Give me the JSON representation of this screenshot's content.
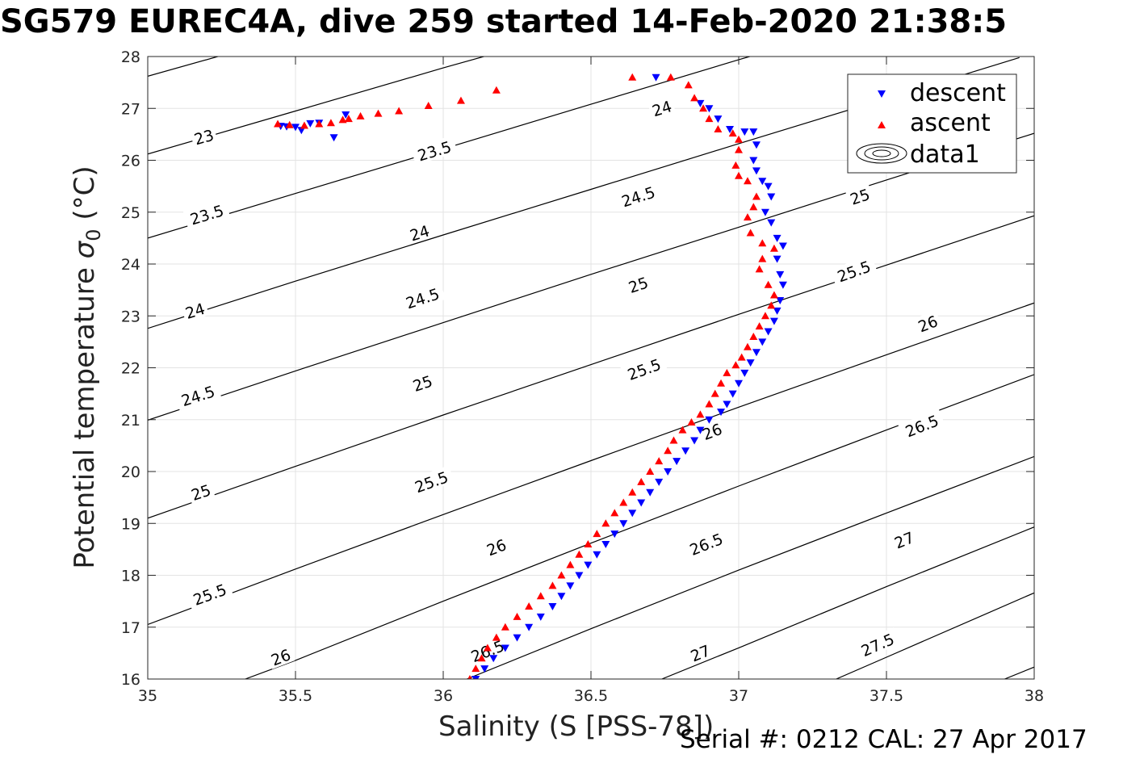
{
  "title": "SG579 EUREC4A, dive 259 started 14-Feb-2020 21:38:5",
  "footer": "Serial #: 0212  CAL: 27 Apr 2017",
  "chart_data": {
    "type": "scatter",
    "xlabel": "Salinity (S [PSS-78])",
    "ylabel_main": "Potential temperature ",
    "ylabel_symbol": "σ",
    "ylabel_sub": "0",
    "ylabel_unit": " (°C)",
    "xlim": [
      35,
      38
    ],
    "ylim": [
      16,
      28
    ],
    "xticks": [
      35,
      35.5,
      36,
      36.5,
      37,
      37.5,
      38
    ],
    "xtick_labels": [
      "35",
      "35.5",
      "36",
      "36.5",
      "37",
      "37.5",
      "38"
    ],
    "yticks": [
      16,
      17,
      18,
      19,
      20,
      21,
      22,
      23,
      24,
      25,
      26,
      27,
      28
    ],
    "ytick_labels": [
      "16",
      "17",
      "18",
      "19",
      "20",
      "21",
      "22",
      "23",
      "24",
      "25",
      "26",
      "27",
      "28"
    ],
    "grid": true,
    "legend_position": "top-right",
    "legend": [
      "descent",
      "ascent",
      "data1"
    ],
    "contour_label_values": [
      "23",
      "23.5",
      "24",
      "24.5",
      "25",
      "25.5",
      "26",
      "26.5",
      "27",
      "27.5"
    ],
    "contours": [
      {
        "level": 22.5,
        "points": [
          [
            35,
            27.62
          ],
          [
            35.5,
            28.42
          ]
        ]
      },
      {
        "level": 23,
        "points": [
          [
            35,
            26.12
          ],
          [
            35.5,
            26.95
          ],
          [
            36,
            27.78
          ],
          [
            36.2,
            28.1
          ]
        ],
        "label": "23",
        "label_at": [
          35.19,
          26.45
        ]
      },
      {
        "level": 23.5,
        "points": [
          [
            35,
            24.5
          ],
          [
            35.5,
            25.36
          ],
          [
            36,
            26.22
          ],
          [
            36.5,
            27.08
          ],
          [
            37,
            27.94
          ],
          [
            37.05,
            28.02
          ]
        ],
        "label": "23.5",
        "label_at": [
          35.2,
          24.95
        ],
        "label2_at": [
          35.97,
          26.18
        ]
      },
      {
        "level": 24,
        "points": [
          [
            35,
            22.76
          ],
          [
            35.5,
            23.67
          ],
          [
            36,
            24.56
          ],
          [
            36.5,
            25.44
          ],
          [
            37,
            26.32
          ],
          [
            37.5,
            27.19
          ],
          [
            37.95,
            27.98
          ]
        ],
        "label": "24",
        "label_at": [
          35.16,
          23.1
        ],
        "label2_at": [
          35.92,
          24.6
        ],
        "label3_at": [
          36.74,
          27.0
        ]
      },
      {
        "level": 24.5,
        "points": [
          [
            35,
            20.99
          ],
          [
            35.5,
            21.94
          ],
          [
            36,
            22.87
          ],
          [
            36.5,
            23.8
          ],
          [
            37,
            24.71
          ],
          [
            37.5,
            25.62
          ],
          [
            38,
            26.52
          ]
        ],
        "label": "24.5",
        "label_at": [
          35.17,
          21.46
        ],
        "label2_at": [
          35.93,
          23.34
        ],
        "label3_at": [
          36.66,
          25.3
        ]
      },
      {
        "level": 25,
        "points": [
          [
            35,
            19.1
          ],
          [
            35.5,
            20.1
          ],
          [
            36,
            21.09
          ],
          [
            36.5,
            22.06
          ],
          [
            37,
            23.03
          ],
          [
            37.5,
            23.98
          ],
          [
            38,
            24.93
          ]
        ],
        "label": "25",
        "label_at": [
          35.18,
          19.6
        ],
        "label2_at": [
          35.93,
          21.7
        ],
        "label3_at": [
          36.66,
          23.6
        ],
        "label4_at": [
          37.41,
          25.3
        ]
      },
      {
        "level": 25.5,
        "points": [
          [
            35,
            17.05
          ],
          [
            35.5,
            18.12
          ],
          [
            36,
            19.17
          ],
          [
            36.5,
            20.21
          ],
          [
            37,
            21.24
          ],
          [
            37.5,
            22.25
          ],
          [
            38,
            23.25
          ]
        ],
        "label": "25.5",
        "label_at": [
          35.21,
          17.63
        ],
        "label2_at": [
          35.96,
          19.8
        ],
        "label3_at": [
          36.68,
          21.97
        ],
        "label4_at": [
          37.39,
          23.86
        ]
      },
      {
        "level": 26,
        "points": [
          [
            35.33,
            16
          ],
          [
            35.5,
            16.36
          ],
          [
            36,
            17.5
          ],
          [
            36.5,
            18.62
          ],
          [
            37,
            19.72
          ],
          [
            37.5,
            20.8
          ],
          [
            38,
            21.87
          ]
        ],
        "label": "26",
        "label_at": [
          35.45,
          16.42
        ],
        "label2_at": [
          36.18,
          18.54
        ],
        "label3_at": [
          36.91,
          20.77
        ],
        "label4_at": [
          37.64,
          22.85
        ]
      },
      {
        "level": 26.5,
        "points": [
          [
            36.08,
            16
          ],
          [
            36.5,
            16.97
          ],
          [
            37,
            18.1
          ],
          [
            37.5,
            19.2
          ],
          [
            38,
            20.29
          ]
        ],
        "label": "26.5",
        "label_at": [
          36.15,
          16.54
        ],
        "label2_at": [
          36.89,
          18.6
        ],
        "label3_at": [
          37.62,
          20.88
        ]
      },
      {
        "level": 27,
        "points": [
          [
            36.74,
            16
          ],
          [
            37,
            16.6
          ],
          [
            37.5,
            17.78
          ],
          [
            38,
            18.93
          ]
        ],
        "label": "27",
        "label_at": [
          36.87,
          16.5
        ],
        "label2_at": [
          37.56,
          18.68
        ]
      },
      {
        "level": 27.5,
        "points": [
          [
            37.33,
            16
          ],
          [
            37.5,
            16.42
          ],
          [
            38,
            17.66
          ]
        ],
        "label": "27.5",
        "label_at": [
          37.47,
          16.66
        ]
      },
      {
        "level": 28,
        "points": [
          [
            37.9,
            16
          ],
          [
            38,
            16.23
          ]
        ]
      }
    ],
    "series": [
      {
        "name": "descent",
        "marker": "triangle-down",
        "color": "#0000ff",
        "points": [
          [
            35.45,
            26.66
          ],
          [
            35.47,
            26.65
          ],
          [
            35.5,
            26.64
          ],
          [
            35.52,
            26.58
          ],
          [
            35.55,
            26.71
          ],
          [
            35.58,
            26.72
          ],
          [
            35.63,
            26.44
          ],
          [
            35.67,
            26.88
          ],
          [
            36.72,
            27.6
          ],
          [
            36.87,
            27.1
          ],
          [
            36.9,
            27.0
          ],
          [
            36.93,
            26.8
          ],
          [
            36.97,
            26.6
          ],
          [
            37.02,
            26.55
          ],
          [
            37.05,
            26.55
          ],
          [
            37.06,
            26.3
          ],
          [
            37.05,
            26.0
          ],
          [
            37.06,
            25.8
          ],
          [
            37.08,
            25.6
          ],
          [
            37.1,
            25.5
          ],
          [
            37.11,
            25.3
          ],
          [
            37.09,
            25.0
          ],
          [
            37.11,
            24.8
          ],
          [
            37.13,
            24.5
          ],
          [
            37.15,
            24.35
          ],
          [
            37.13,
            24.1
          ],
          [
            37.14,
            23.8
          ],
          [
            37.15,
            23.6
          ],
          [
            37.14,
            23.3
          ],
          [
            37.13,
            23.1
          ],
          [
            37.12,
            22.9
          ],
          [
            37.1,
            22.7
          ],
          [
            37.08,
            22.5
          ],
          [
            37.06,
            22.3
          ],
          [
            37.04,
            22.1
          ],
          [
            37.02,
            21.9
          ],
          [
            37.0,
            21.7
          ],
          [
            36.98,
            21.5
          ],
          [
            36.96,
            21.3
          ],
          [
            36.94,
            21.15
          ],
          [
            36.9,
            21.0
          ],
          [
            36.87,
            20.8
          ],
          [
            36.85,
            20.6
          ],
          [
            36.82,
            20.4
          ],
          [
            36.79,
            20.2
          ],
          [
            36.76,
            20.0
          ],
          [
            36.73,
            19.8
          ],
          [
            36.7,
            19.6
          ],
          [
            36.67,
            19.4
          ],
          [
            36.64,
            19.2
          ],
          [
            36.61,
            19.0
          ],
          [
            36.58,
            18.8
          ],
          [
            36.55,
            18.6
          ],
          [
            36.52,
            18.4
          ],
          [
            36.49,
            18.2
          ],
          [
            36.46,
            18.0
          ],
          [
            36.43,
            17.8
          ],
          [
            36.4,
            17.6
          ],
          [
            36.37,
            17.4
          ],
          [
            36.33,
            17.2
          ],
          [
            36.29,
            17.0
          ],
          [
            36.25,
            16.8
          ],
          [
            36.21,
            16.6
          ],
          [
            36.17,
            16.4
          ],
          [
            36.14,
            16.2
          ],
          [
            36.11,
            16.0
          ]
        ]
      },
      {
        "name": "ascent",
        "marker": "triangle-up",
        "color": "#ff0000",
        "points": [
          [
            35.44,
            26.7
          ],
          [
            35.48,
            26.68
          ],
          [
            35.53,
            26.67
          ],
          [
            35.58,
            26.7
          ],
          [
            35.62,
            26.72
          ],
          [
            35.66,
            26.78
          ],
          [
            35.68,
            26.8
          ],
          [
            35.72,
            26.85
          ],
          [
            35.78,
            26.9
          ],
          [
            35.85,
            26.95
          ],
          [
            35.95,
            27.05
          ],
          [
            36.06,
            27.15
          ],
          [
            36.18,
            27.35
          ],
          [
            36.64,
            27.6
          ],
          [
            36.77,
            27.6
          ],
          [
            36.83,
            27.45
          ],
          [
            36.85,
            27.2
          ],
          [
            36.88,
            27.0
          ],
          [
            36.9,
            26.8
          ],
          [
            36.93,
            26.6
          ],
          [
            36.98,
            26.52
          ],
          [
            37.0,
            26.4
          ],
          [
            37.0,
            26.2
          ],
          [
            36.99,
            25.9
          ],
          [
            37.0,
            25.7
          ],
          [
            37.03,
            25.6
          ],
          [
            37.06,
            25.3
          ],
          [
            37.05,
            25.1
          ],
          [
            37.03,
            24.9
          ],
          [
            37.04,
            24.6
          ],
          [
            37.08,
            24.4
          ],
          [
            37.12,
            24.3
          ],
          [
            37.08,
            24.1
          ],
          [
            37.07,
            23.9
          ],
          [
            37.1,
            23.6
          ],
          [
            37.12,
            23.4
          ],
          [
            37.11,
            23.2
          ],
          [
            37.09,
            23.0
          ],
          [
            37.07,
            22.8
          ],
          [
            37.05,
            22.6
          ],
          [
            37.03,
            22.4
          ],
          [
            37.01,
            22.2
          ],
          [
            36.99,
            22.05
          ],
          [
            36.96,
            21.9
          ],
          [
            36.94,
            21.7
          ],
          [
            36.92,
            21.5
          ],
          [
            36.9,
            21.3
          ],
          [
            36.87,
            21.1
          ],
          [
            36.84,
            20.95
          ],
          [
            36.81,
            20.8
          ],
          [
            36.78,
            20.6
          ],
          [
            36.76,
            20.4
          ],
          [
            36.73,
            20.2
          ],
          [
            36.7,
            20.0
          ],
          [
            36.67,
            19.8
          ],
          [
            36.64,
            19.6
          ],
          [
            36.61,
            19.4
          ],
          [
            36.58,
            19.2
          ],
          [
            36.55,
            19.0
          ],
          [
            36.52,
            18.8
          ],
          [
            36.49,
            18.6
          ],
          [
            36.46,
            18.4
          ],
          [
            36.43,
            18.2
          ],
          [
            36.4,
            18.0
          ],
          [
            36.37,
            17.8
          ],
          [
            36.33,
            17.6
          ],
          [
            36.29,
            17.4
          ],
          [
            36.25,
            17.2
          ],
          [
            36.21,
            17.0
          ],
          [
            36.18,
            16.8
          ],
          [
            36.15,
            16.6
          ],
          [
            36.13,
            16.4
          ],
          [
            36.11,
            16.2
          ],
          [
            36.09,
            16.0
          ]
        ]
      }
    ]
  }
}
